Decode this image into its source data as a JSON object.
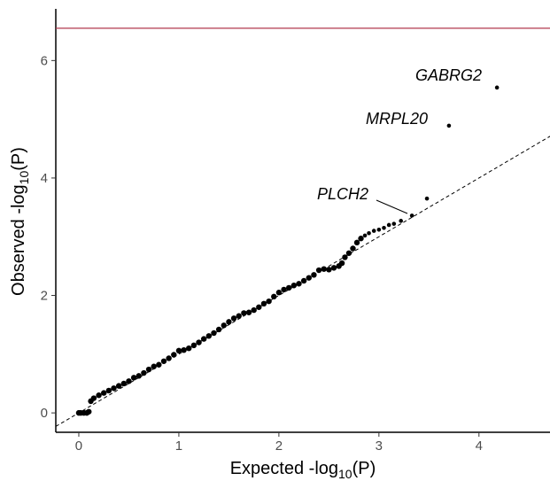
{
  "chart_data": {
    "type": "scatter",
    "x_label_parts": [
      "Expected -log",
      "10",
      "(P)"
    ],
    "y_label_parts": [
      "Observed -log",
      "10",
      "(P)"
    ],
    "series": [
      {
        "color": "#000000",
        "x": [
          0,
          0.02,
          0.05,
          0.08,
          0.1,
          0.12,
          0.15,
          0.2,
          0.25,
          0.3,
          0.35,
          0.4,
          0.45,
          0.5,
          0.55,
          0.6,
          0.65,
          0.7,
          0.75,
          0.8,
          0.85,
          0.9,
          0.95,
          1.0,
          1.05,
          1.1,
          1.15,
          1.2,
          1.25,
          1.3,
          1.35,
          1.4,
          1.45,
          1.5,
          1.55,
          1.6,
          1.65,
          1.7,
          1.75,
          1.8,
          1.85,
          1.9,
          1.95,
          2.0,
          2.05,
          2.1,
          2.15,
          2.2,
          2.25,
          2.3,
          2.35,
          2.4,
          2.45,
          2.5,
          2.55,
          2.6,
          2.63,
          2.66,
          2.7,
          2.74,
          2.78,
          2.82,
          2.86,
          2.9,
          2.95,
          3.0,
          3.05,
          3.1,
          3.15,
          3.22,
          3.33,
          3.48,
          3.7,
          4.18
        ],
        "values": [
          0,
          0,
          0,
          0,
          0.02,
          0.2,
          0.25,
          0.3,
          0.34,
          0.38,
          0.42,
          0.46,
          0.5,
          0.54,
          0.6,
          0.63,
          0.68,
          0.74,
          0.79,
          0.82,
          0.88,
          0.93,
          0.99,
          1.06,
          1.07,
          1.1,
          1.15,
          1.2,
          1.26,
          1.31,
          1.36,
          1.42,
          1.49,
          1.55,
          1.61,
          1.65,
          1.7,
          1.71,
          1.75,
          1.8,
          1.86,
          1.9,
          1.98,
          2.05,
          2.1,
          2.13,
          2.17,
          2.2,
          2.25,
          2.3,
          2.35,
          2.43,
          2.45,
          2.44,
          2.47,
          2.5,
          2.55,
          2.65,
          2.72,
          2.8,
          2.9,
          2.97,
          3.02,
          3.06,
          3.1,
          3.12,
          3.15,
          3.2,
          3.22,
          3.27,
          3.36,
          3.65,
          4.89,
          5.54
        ]
      }
    ],
    "annotations": [
      {
        "text": "GABRG2"
      },
      {
        "text": "MRPL20"
      },
      {
        "text": "PLCH2"
      }
    ],
    "threshold": 6.55,
    "threshold_color": "#b2384f",
    "reference_line": "y=x",
    "xlim": [
      -0.23,
      4.71
    ],
    "ylim": [
      -0.33,
      6.88
    ],
    "xticks": [
      0,
      1,
      2,
      3,
      4
    ],
    "yticks": [
      0,
      2,
      4,
      6
    ]
  }
}
